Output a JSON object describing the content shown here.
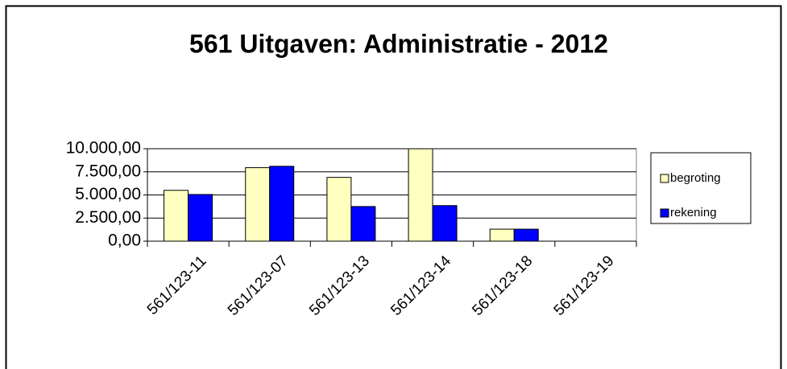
{
  "chart_data": {
    "type": "bar",
    "title": "561 Uitgaven: Administratie - 2012",
    "categories": [
      "561/123-11",
      "561/123-07",
      "561/123-13",
      "561/123-14",
      "561/123-18",
      "561/123-19"
    ],
    "series": [
      {
        "name": "begroting",
        "color": "#ffffc0",
        "values": [
          5500,
          7950,
          6900,
          10000,
          1300,
          0
        ]
      },
      {
        "name": "rekening",
        "color": "#0000ff",
        "values": [
          5050,
          8100,
          3750,
          3850,
          1300,
          0
        ]
      }
    ],
    "ylim": [
      0,
      10000
    ],
    "yticks": [
      {
        "value": 0,
        "label": "0,00"
      },
      {
        "value": 2500,
        "label": "2.500,00"
      },
      {
        "value": 5000,
        "label": "5.000,00"
      },
      {
        "value": 7500,
        "label": "7.500,00"
      },
      {
        "value": 10000,
        "label": "10.000,00"
      }
    ],
    "grid": true,
    "legend": "right"
  }
}
